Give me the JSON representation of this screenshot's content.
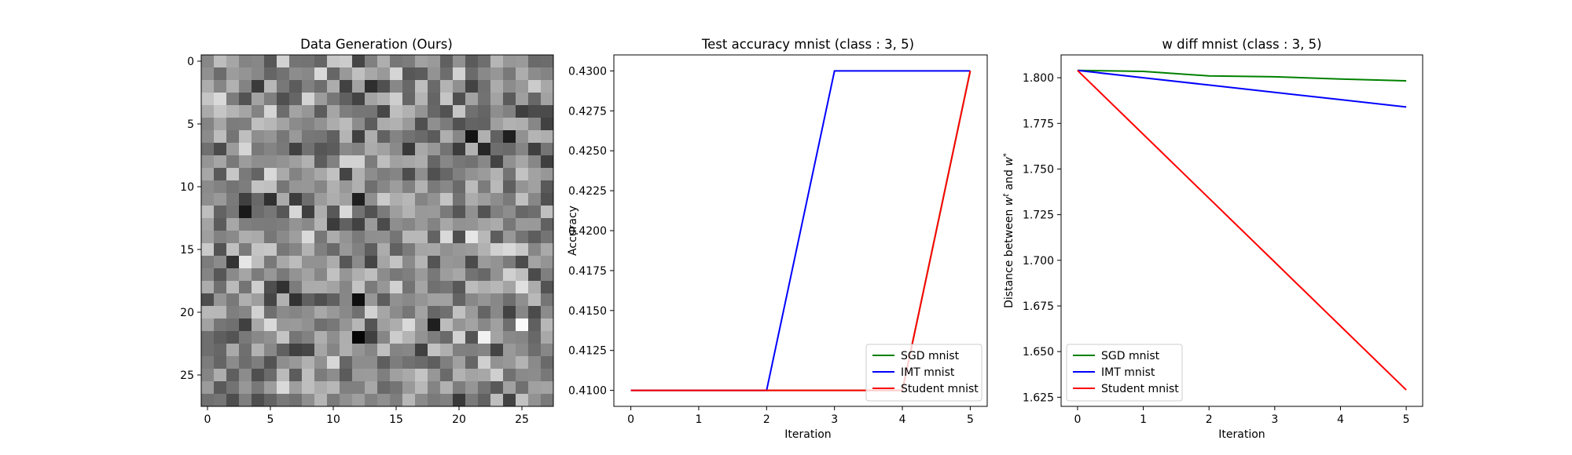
{
  "chart_data": [
    {
      "type": "heatmap",
      "title": "Data Generation (Ours)",
      "xlabel": "",
      "ylabel": "",
      "rows": 28,
      "cols": 28,
      "xticks": [
        0,
        5,
        10,
        15,
        20,
        25
      ],
      "yticks": [
        0,
        5,
        10,
        15,
        20,
        25
      ],
      "colormap": "gray",
      "value_range": [
        0,
        1
      ],
      "note_values": "random noise pixel intensities; dark/bright outliers listed in highlights",
      "seed": 7,
      "highlights": [
        {
          "row": 6,
          "col": 21,
          "value": 0.08
        },
        {
          "row": 12,
          "col": 3,
          "value": 0.1
        },
        {
          "row": 11,
          "col": 12,
          "value": 0.12
        },
        {
          "row": 19,
          "col": 12,
          "value": 0.06
        },
        {
          "row": 22,
          "col": 12,
          "value": 0.02
        },
        {
          "row": 21,
          "col": 18,
          "value": 0.12
        },
        {
          "row": 21,
          "col": 25,
          "value": 0.98
        },
        {
          "row": 22,
          "col": 22,
          "value": 0.95
        },
        {
          "row": 14,
          "col": 21,
          "value": 0.9
        },
        {
          "row": 18,
          "col": 25,
          "value": 0.88
        },
        {
          "row": 16,
          "col": 3,
          "value": 0.9
        },
        {
          "row": 6,
          "col": 24,
          "value": 0.12
        },
        {
          "row": 7,
          "col": 22,
          "value": 0.15
        }
      ]
    },
    {
      "type": "line",
      "title": "Test accuracy mnist (class : 3, 5)",
      "xlabel": "Iteration",
      "ylabel": "Accuracy",
      "x": [
        0,
        1,
        2,
        3,
        4,
        5
      ],
      "xlim": [
        -0.25,
        5.25
      ],
      "ylim": [
        0.409,
        0.431
      ],
      "xticks": [
        "0",
        "1",
        "2",
        "3",
        "4",
        "5"
      ],
      "yticks": [
        "0.4100",
        "0.4125",
        "0.4150",
        "0.4175",
        "0.4200",
        "0.4225",
        "0.4250",
        "0.4275",
        "0.4300"
      ],
      "grid": false,
      "legend_position": "lower right",
      "series": [
        {
          "name": "SGD mnist",
          "color": "#008000",
          "values": [
            0.41,
            0.41,
            0.41,
            0.41,
            0.41,
            0.43
          ]
        },
        {
          "name": "IMT mnist",
          "color": "#0000ff",
          "values": [
            0.41,
            0.41,
            0.41,
            0.43,
            0.43,
            0.43
          ]
        },
        {
          "name": "Student mnist",
          "color": "#ff0000",
          "values": [
            0.41,
            0.41,
            0.41,
            0.41,
            0.41,
            0.43
          ]
        }
      ]
    },
    {
      "type": "line",
      "title": "w diff mnist (class : 3, 5)",
      "xlabel": "Iteration",
      "ylabel": "Distance between w^t and w^*",
      "x": [
        0,
        1,
        2,
        3,
        4,
        5
      ],
      "xlim": [
        -0.25,
        5.25
      ],
      "ylim": [
        1.62,
        1.8125
      ],
      "xticks": [
        "0",
        "1",
        "2",
        "3",
        "4",
        "5"
      ],
      "yticks": [
        "1.625",
        "1.650",
        "1.675",
        "1.700",
        "1.725",
        "1.750",
        "1.775",
        "1.800"
      ],
      "grid": false,
      "legend_position": "lower left",
      "series": [
        {
          "name": "SGD mnist",
          "color": "#008000",
          "values": [
            1.804,
            1.8035,
            1.801,
            1.8005,
            1.7993,
            1.7983
          ]
        },
        {
          "name": "IMT mnist",
          "color": "#0000ff",
          "values": [
            1.804,
            1.8,
            1.796,
            1.792,
            1.788,
            1.784
          ]
        },
        {
          "name": "Student mnist",
          "color": "#ff0000",
          "values": [
            1.804,
            1.769,
            1.734,
            1.699,
            1.664,
            1.629
          ]
        }
      ]
    }
  ]
}
